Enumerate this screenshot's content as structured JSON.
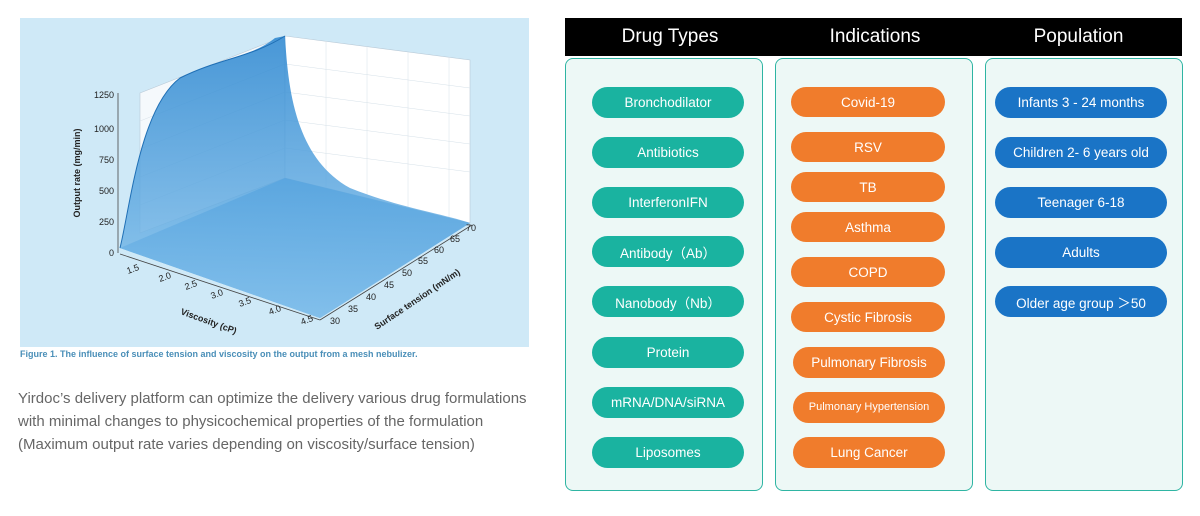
{
  "figure": {
    "y_axis_label": "Output rate (mg/min)",
    "y_ticks": [
      "0",
      "250",
      "500",
      "750",
      "1000",
      "1250"
    ],
    "x_axis_label": "Viscosity (cP)",
    "x_ticks": [
      "1.5",
      "2.0",
      "2.5",
      "3.0",
      "3.5",
      "4.0",
      "4.5"
    ],
    "z_axis_label": "Surface tension (mN/m)",
    "z_ticks": [
      "30",
      "35",
      "40",
      "45",
      "50",
      "55",
      "60",
      "65",
      "70"
    ],
    "caption": "Figure 1. The influence of surface tension and viscosity on the output from a mesh nebulizer."
  },
  "description": [
    "Yirdoc’s delivery platform can optimize the delivery various drug formulations",
    "with minimal changes to physicochemical properties of the formulation",
    "(Maximum output rate varies depending on viscosity/surface tension)"
  ],
  "columns": [
    {
      "title": "Drug Types",
      "items": [
        "Bronchodilator",
        "Antibiotics",
        "InterferonIFN",
        "Antibody（Ab）",
        "Nanobody（Nb）",
        "Protein",
        "mRNA/DNA/siRNA",
        "Liposomes"
      ]
    },
    {
      "title": "Indications",
      "items": [
        "Covid-19",
        "RSV",
        "TB",
        "Asthma",
        "COPD",
        "Cystic Fibrosis",
        "Pulmonary Fibrosis",
        "Pulmonary Hypertension",
        "Lung Cancer"
      ]
    },
    {
      "title": "Population",
      "items": [
        "Infants 3 - 24 months",
        "Children 2- 6 years old",
        "Teenager 6-18",
        "Adults",
        "Older age group ＞50"
      ]
    }
  ],
  "colors": {
    "teal": "#1ab3a0",
    "orange": "#f07c2c",
    "blue": "#1a74c6",
    "header": "#000000",
    "border": "#2fb5a3"
  }
}
